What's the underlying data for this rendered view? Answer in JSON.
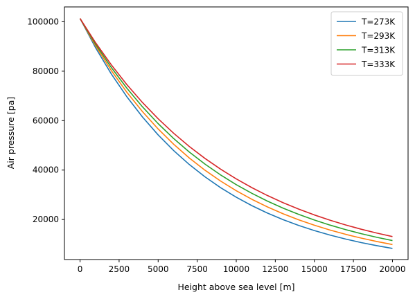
{
  "chart_data": {
    "type": "line",
    "title": "",
    "xlabel": "Height above sea level [m]",
    "ylabel": "Air pressure [pa]",
    "xlim": [
      -1000,
      21000
    ],
    "ylim": [
      3800,
      106000
    ],
    "xticks": [
      0,
      2500,
      5000,
      7500,
      10000,
      12500,
      15000,
      17500,
      20000
    ],
    "xtick_labels": [
      "0",
      "2500",
      "5000",
      "7500",
      "10000",
      "12500",
      "15000",
      "17500",
      "20000"
    ],
    "yticks": [
      20000,
      40000,
      60000,
      80000,
      100000
    ],
    "ytick_labels": [
      "20000",
      "40000",
      "60000",
      "80000",
      "100000"
    ],
    "grid": false,
    "legend_position": "top-right",
    "x": [
      0,
      1000,
      2000,
      3000,
      4000,
      5000,
      6000,
      7000,
      8000,
      9000,
      10000,
      11000,
      12000,
      13000,
      14000,
      15000,
      16000,
      17000,
      18000,
      19000,
      20000
    ],
    "series": [
      {
        "name": "T=273K",
        "color": "#1f77b4",
        "values": [
          101325,
          89413,
          78901,
          69625,
          61440,
          54217,
          47843,
          42218,
          37255,
          32875,
          29010,
          25600,
          22590,
          19934,
          17591,
          15523,
          13698,
          12088,
          10667,
          9413,
          8306
        ]
      },
      {
        "name": "T=293K",
        "color": "#ff7f0e",
        "values": [
          101325,
          90192,
          80283,
          71462,
          63611,
          56622,
          50401,
          44863,
          39935,
          35547,
          31642,
          28165,
          25071,
          22316,
          19865,
          17682,
          15740,
          14010,
          12471,
          11101,
          9881
        ]
      },
      {
        "name": "T=313K",
        "color": "#2ca02c",
        "values": [
          101325,
          90872,
          81496,
          73088,
          65547,
          58785,
          52720,
          47280,
          42402,
          38028,
          34104,
          30586,
          27430,
          24600,
          22062,
          19786,
          17745,
          15914,
          14272,
          12800,
          11479
        ]
      },
      {
        "name": "T=333K",
        "color": "#d62728",
        "values": [
          101325,
          91472,
          82577,
          74547,
          67298,
          60754,
          54846,
          49513,
          44698,
          40352,
          36428,
          32885,
          29688,
          26801,
          24195,
          21842,
          19718,
          17801,
          16070,
          14507,
          13096
        ]
      }
    ]
  }
}
